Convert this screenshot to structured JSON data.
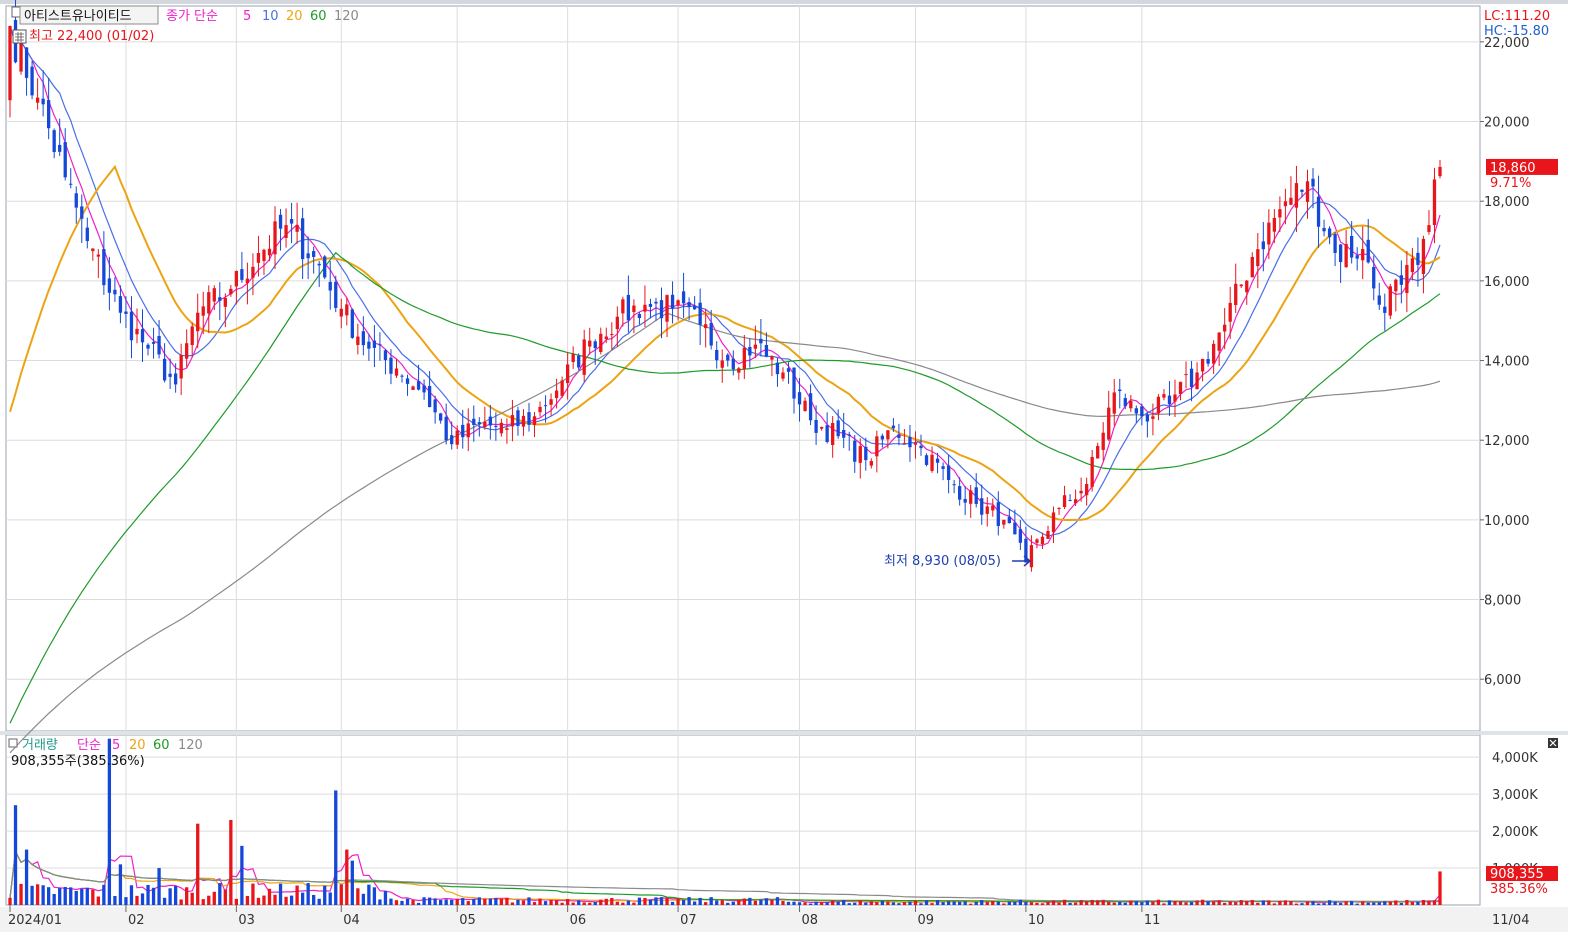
{
  "header": {
    "stock_name": "아티스트유나이티드",
    "indicator_label": "종가 단순",
    "ma_periods": [
      "5",
      "10",
      "20",
      "60",
      "120"
    ],
    "high_annotation": "최고 22,400 (01/02)",
    "low_annotation": "최저 8,930 (08/05)",
    "lc_label": "LC:111.20",
    "hc_label": "HC:-15.80",
    "current_price_label": "18,860",
    "current_change_label": "9.71%"
  },
  "volume_panel": {
    "title": "거래량",
    "indicator_label": "단순",
    "ma_periods": [
      "5",
      "20",
      "60",
      "120"
    ],
    "current_volume_label": "908,355주(385.36%)",
    "current_value_label": "908,355",
    "current_pct_label": "385.36%"
  },
  "colors": {
    "up": "#e8151b",
    "down": "#1548d8",
    "ma5": "#ee22cc",
    "ma10": "#4a6ee8",
    "ma20": "#eca414",
    "ma60": "#1f9b2a",
    "ma120": "#8a8a8a",
    "grid": "#dcdcdc",
    "badge_bg": "#e8151b",
    "axis_text": "#333333"
  },
  "chart_data": {
    "type": "candlestick",
    "price_axis": {
      "ticks": [
        6000,
        8000,
        10000,
        12000,
        14000,
        16000,
        18000,
        20000,
        22000
      ],
      "tick_labels": [
        "6,000",
        "8,000",
        "10,000",
        "12,000",
        "14,000",
        "16,000",
        "18,000",
        "20,000",
        "22,000"
      ],
      "range": [
        4700,
        22900
      ]
    },
    "volume_axis": {
      "ticks": [
        1000000,
        2000000,
        3000000,
        4000000
      ],
      "tick_labels": [
        "1,000K",
        "2,000K",
        "3,000K",
        "4,000K"
      ],
      "range": [
        0,
        4600000
      ]
    },
    "x_axis_labels": [
      "2024/01",
      "02",
      "03",
      "04",
      "05",
      "06",
      "07",
      "08",
      "09",
      "10",
      "11",
      "11/04"
    ],
    "current_price": 18860,
    "current_volume": 908355,
    "high": {
      "value": 22400,
      "date": "01/02"
    },
    "low": {
      "value": 8930,
      "date": "08/05"
    },
    "price_anchors": [
      [
        0,
        22400
      ],
      [
        5,
        20600
      ],
      [
        10,
        18600
      ],
      [
        14,
        17000
      ],
      [
        20,
        15200
      ],
      [
        25,
        14300
      ],
      [
        30,
        13400
      ],
      [
        34,
        15200
      ],
      [
        40,
        15800
      ],
      [
        45,
        16700
      ],
      [
        50,
        17400
      ],
      [
        55,
        16600
      ],
      [
        60,
        15300
      ],
      [
        65,
        14300
      ],
      [
        70,
        13800
      ],
      [
        75,
        13200
      ],
      [
        80,
        11900
      ],
      [
        85,
        12400
      ],
      [
        90,
        12300
      ],
      [
        95,
        12600
      ],
      [
        100,
        13500
      ],
      [
        105,
        14500
      ],
      [
        110,
        15100
      ],
      [
        115,
        15400
      ],
      [
        120,
        15300
      ],
      [
        125,
        14900
      ],
      [
        130,
        14000
      ],
      [
        135,
        14400
      ],
      [
        140,
        13700
      ],
      [
        145,
        12500
      ],
      [
        150,
        12100
      ],
      [
        155,
        11500
      ],
      [
        160,
        12300
      ],
      [
        165,
        11800
      ],
      [
        170,
        11000
      ],
      [
        175,
        10400
      ],
      [
        180,
        10000
      ],
      [
        184,
        8930
      ],
      [
        190,
        10300
      ],
      [
        195,
        10900
      ],
      [
        200,
        13200
      ],
      [
        205,
        12600
      ],
      [
        210,
        12900
      ],
      [
        215,
        13700
      ],
      [
        220,
        14900
      ],
      [
        225,
        16600
      ],
      [
        230,
        17800
      ],
      [
        235,
        18500
      ],
      [
        240,
        16700
      ],
      [
        245,
        16800
      ],
      [
        248,
        15400
      ],
      [
        252,
        15900
      ],
      [
        255,
        16400
      ],
      [
        257,
        17400
      ],
      [
        259,
        18860
      ]
    ],
    "volume_spikes": [
      [
        18,
        4500000
      ],
      [
        34,
        2200000
      ],
      [
        40,
        2300000
      ],
      [
        42,
        1600000
      ],
      [
        59,
        3100000
      ],
      [
        61,
        1500000
      ],
      [
        62,
        1200000
      ],
      [
        1,
        2700000
      ],
      [
        3,
        1500000
      ],
      [
        20,
        1100000
      ],
      [
        27,
        1000000
      ],
      [
        259,
        908355
      ]
    ],
    "total_bars": 260
  }
}
